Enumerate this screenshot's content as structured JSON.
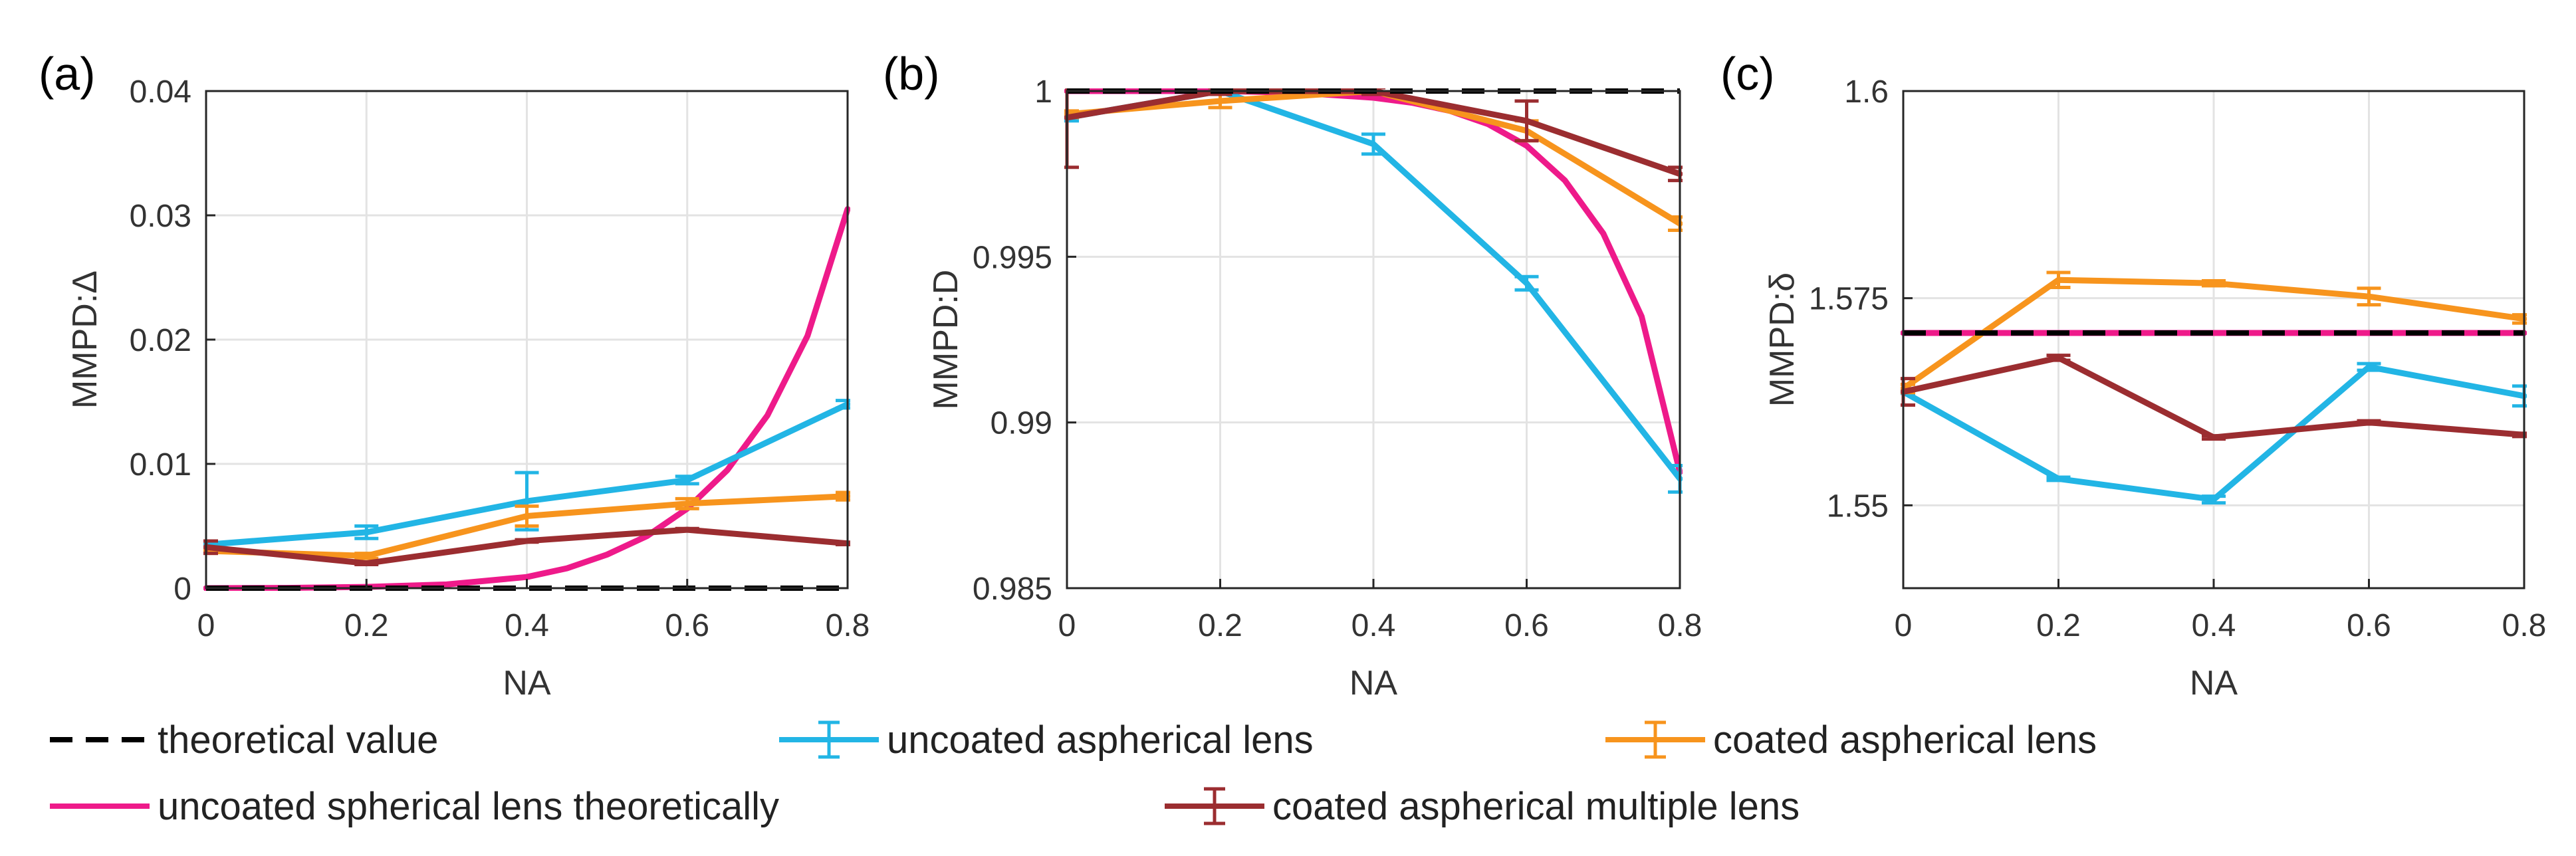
{
  "legend": {
    "items": [
      {
        "label": "theoretical value",
        "color": "#000000",
        "style": "dashed",
        "errorbar": false
      },
      {
        "label": "uncoated aspherical lens",
        "color": "#22b5e5",
        "style": "solid",
        "errorbar": true
      },
      {
        "label": "coated aspherical lens",
        "color": "#f7941d",
        "style": "solid",
        "errorbar": true
      },
      {
        "label": "uncoated spherical lens theoretically",
        "color": "#ee1a8a",
        "style": "solid",
        "errorbar": false
      },
      {
        "label": "coated aspherical multiple lens",
        "color": "#9b2d30",
        "style": "solid",
        "errorbar": true
      }
    ]
  },
  "chart_data": [
    {
      "type": "line",
      "panel_label": "(a)",
      "xlabel": "NA",
      "ylabel": "MMPD:Δ",
      "xlim": [
        0,
        0.8
      ],
      "ylim": [
        0,
        0.04
      ],
      "xticks": [
        "0",
        "0.2",
        "0.4",
        "0.6",
        "0.8"
      ],
      "xtick_values": [
        0,
        0.2,
        0.4,
        0.6,
        0.8
      ],
      "yticks": [
        "0",
        "0.01",
        "0.02",
        "0.03",
        "0.04"
      ],
      "ytick_values": [
        0,
        0.01,
        0.02,
        0.03,
        0.04
      ],
      "grid": true,
      "series": [
        {
          "key": "theoretical",
          "color": "#000000",
          "style": "dashed",
          "x": [
            0,
            0.8
          ],
          "y": [
            0,
            0
          ]
        },
        {
          "key": "spherical",
          "color": "#ee1a8a",
          "style": "solid",
          "x": [
            0,
            0.1,
            0.2,
            0.3,
            0.4,
            0.45,
            0.5,
            0.55,
            0.6,
            0.65,
            0.7,
            0.75,
            0.8
          ],
          "y": [
            0,
            2e-05,
            0.0001,
            0.0003,
            0.0009,
            0.0016,
            0.0027,
            0.0042,
            0.0064,
            0.0095,
            0.0139,
            0.0203,
            0.0305
          ]
        },
        {
          "key": "uncoated",
          "color": "#22b5e5",
          "style": "solid",
          "x": [
            0,
            0.2,
            0.4,
            0.6,
            0.8
          ],
          "y": [
            0.0035,
            0.0045,
            0.007,
            0.0087,
            0.0148
          ],
          "err": [
            0.0002,
            0.0005,
            0.0023,
            0.0003,
            0.0003
          ]
        },
        {
          "key": "coated",
          "color": "#f7941d",
          "style": "solid",
          "x": [
            0,
            0.2,
            0.4,
            0.6,
            0.8
          ],
          "y": [
            0.003,
            0.0026,
            0.0058,
            0.0068,
            0.0074
          ],
          "err": [
            0.0002,
            0.0002,
            0.0008,
            0.0004,
            0.0003
          ]
        },
        {
          "key": "multiple",
          "color": "#9b2d30",
          "style": "solid",
          "x": [
            0,
            0.2,
            0.4,
            0.6,
            0.8
          ],
          "y": [
            0.0033,
            0.002,
            0.0038,
            0.0047,
            0.0036
          ],
          "err": [
            0.0005,
            0.0001,
            0.0001,
            0.0001,
            0.0001
          ]
        }
      ]
    },
    {
      "type": "line",
      "panel_label": "(b)",
      "xlabel": "NA",
      "ylabel": "MMPD:D",
      "xlim": [
        0,
        0.8
      ],
      "ylim": [
        0.985,
        1
      ],
      "xticks": [
        "0",
        "0.2",
        "0.4",
        "0.6",
        "0.8"
      ],
      "xtick_values": [
        0,
        0.2,
        0.4,
        0.6,
        0.8
      ],
      "yticks": [
        "0.985",
        "0.99",
        "0.995",
        "1"
      ],
      "ytick_values": [
        0.985,
        0.99,
        0.995,
        1
      ],
      "grid": true,
      "series": [
        {
          "key": "theoretical",
          "color": "#000000",
          "style": "dashed",
          "x": [
            0,
            0.8
          ],
          "y": [
            1,
            1
          ]
        },
        {
          "key": "spherical",
          "color": "#ee1a8a",
          "style": "solid",
          "x": [
            0,
            0.1,
            0.2,
            0.3,
            0.4,
            0.45,
            0.5,
            0.55,
            0.6,
            0.65,
            0.7,
            0.75,
            0.8
          ],
          "y": [
            1,
            1,
            1,
            0.99995,
            0.9998,
            0.99965,
            0.9994,
            0.999,
            0.99835,
            0.9973,
            0.9957,
            0.9932,
            0.9885
          ]
        },
        {
          "key": "uncoated",
          "color": "#22b5e5",
          "style": "solid",
          "x": [
            0,
            0.2,
            0.4,
            0.6,
            0.8
          ],
          "y": [
            0.9992,
            1.0,
            0.9984,
            0.9942,
            0.9883
          ],
          "err": [
            0.0001,
            0.0001,
            0.0003,
            0.0002,
            0.0004
          ]
        },
        {
          "key": "coated",
          "color": "#f7941d",
          "style": "solid",
          "x": [
            0,
            0.2,
            0.4,
            0.6,
            0.8
          ],
          "y": [
            0.9993,
            0.9997,
            1.0,
            0.9988,
            0.996
          ],
          "err": [
            0.0001,
            0.0002,
            0.0001,
            0.0003,
            0.0002
          ]
        },
        {
          "key": "multiple",
          "color": "#9b2d30",
          "style": "solid",
          "x": [
            0,
            0.2,
            0.4,
            0.6,
            0.8
          ],
          "y": [
            0.9992,
            1.0,
            1.0,
            0.9991,
            0.9975
          ],
          "err": [
            0.0015,
            0.0001,
            0.0001,
            0.0006,
            0.0002
          ]
        }
      ]
    },
    {
      "type": "line",
      "panel_label": "(c)",
      "xlabel": "NA",
      "ylabel": "MMPD:δ",
      "xlim": [
        0,
        0.8
      ],
      "ylim": [
        1.54,
        1.6
      ],
      "xticks": [
        "0",
        "0.2",
        "0.4",
        "0.6",
        "0.8"
      ],
      "xtick_values": [
        0,
        0.2,
        0.4,
        0.6,
        0.8
      ],
      "yticks": [
        "1.55",
        "1.575",
        "1.6"
      ],
      "ytick_values": [
        1.55,
        1.575,
        1.6
      ],
      "grid": true,
      "series": [
        {
          "key": "theoretical",
          "color": "#000000",
          "style": "dashed",
          "x": [
            0,
            0.8
          ],
          "y": [
            1.5708,
            1.5708
          ]
        },
        {
          "key": "spherical",
          "color": "#ee1a8a",
          "style": "solid",
          "x": [
            0,
            0.8
          ],
          "y": [
            1.5708,
            1.5708
          ]
        },
        {
          "key": "uncoated",
          "color": "#22b5e5",
          "style": "solid",
          "x": [
            0,
            0.2,
            0.4,
            0.6,
            0.8
          ],
          "y": [
            1.5637,
            1.5532,
            1.5507,
            1.5667,
            1.5632
          ],
          "err": [
            0.0002,
            0.0002,
            0.0004,
            0.0004,
            0.0012
          ]
        },
        {
          "key": "coated",
          "color": "#f7941d",
          "style": "solid",
          "x": [
            0,
            0.2,
            0.4,
            0.6,
            0.8
          ],
          "y": [
            1.5641,
            1.5772,
            1.5768,
            1.5752,
            1.5725
          ],
          "err": [
            0.0005,
            0.0009,
            0.0003,
            0.001,
            0.0005
          ]
        },
        {
          "key": "multiple",
          "color": "#9b2d30",
          "style": "solid",
          "x": [
            0,
            0.2,
            0.4,
            0.6,
            0.8
          ],
          "y": [
            1.5637,
            1.5678,
            1.5582,
            1.56,
            1.5585
          ],
          "err": [
            0.0016,
            0.0003,
            0.0002,
            0.0002,
            0.0002
          ]
        }
      ]
    }
  ]
}
